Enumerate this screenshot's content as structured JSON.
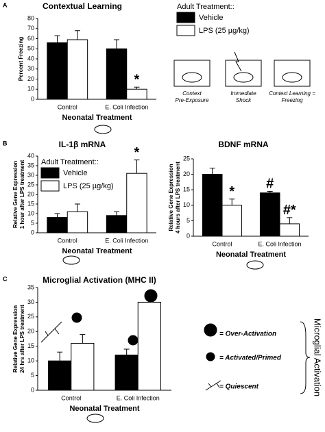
{
  "chart_data": [
    {
      "type": "bar",
      "label": "A",
      "title": "Contextual Learning",
      "ylabel": [
        "Percent Freezing"
      ],
      "xlabel": "Neonatal Treatment",
      "categories": [
        "Control",
        "E. Coli Infection"
      ],
      "series": [
        {
          "name": "Vehicle",
          "color": "#000000",
          "values": [
            56,
            50
          ],
          "errors": [
            7,
            9
          ],
          "annotations": [
            null,
            null
          ]
        },
        {
          "name": "LPS (25 µg/kg)",
          "color": "#ffffff",
          "values": [
            59,
            10
          ],
          "errors": [
            9,
            2
          ],
          "annotations": [
            null,
            "*"
          ]
        }
      ],
      "ylim": [
        0,
        80
      ],
      "yticks": [
        0,
        10,
        20,
        30,
        40,
        50,
        60,
        70,
        80
      ],
      "legend": true,
      "legend_title": "Adult Treatment::",
      "steps": [
        [
          "Context",
          "Pre-Exposure"
        ],
        [
          "Immediate",
          "Shock"
        ],
        [
          "Context Learning =",
          "Freezing"
        ]
      ]
    },
    {
      "type": "bar",
      "label": "B",
      "title": "IL-1β mRNA",
      "ylabel": [
        "Relative Gene Expression",
        "1 hour after LPS treatment"
      ],
      "xlabel": "Neonatal Treatment",
      "categories": [
        "Control",
        "E. Coli Infection"
      ],
      "series": [
        {
          "name": "Vehicle",
          "color": "#000000",
          "values": [
            8,
            9
          ],
          "errors": [
            2,
            2
          ],
          "annotations": [
            null,
            null
          ]
        },
        {
          "name": "LPS (25 µg/kg)",
          "color": "#ffffff",
          "values": [
            11,
            31
          ],
          "errors": [
            4,
            7
          ],
          "annotations": [
            null,
            "*"
          ]
        }
      ],
      "ylim": [
        0,
        40
      ],
      "yticks": [
        0,
        5,
        10,
        15,
        20,
        25,
        30,
        35,
        40
      ],
      "legend": true,
      "legend_title": "Adult Treatment::"
    },
    {
      "type": "bar",
      "title": "BDNF mRNA",
      "ylabel": [
        "Relative Gene Expression",
        "4 hours after LPS treatment"
      ],
      "xlabel": "Neonatal Treatment",
      "categories": [
        "Control",
        "E. Coli Infection"
      ],
      "series": [
        {
          "name": "Vehicle",
          "color": "#000000",
          "values": [
            20,
            14
          ],
          "errors": [
            2,
            0.5
          ],
          "annotations": [
            null,
            "#"
          ]
        },
        {
          "name": "LPS",
          "color": "#ffffff",
          "values": [
            10,
            4
          ],
          "errors": [
            2,
            2
          ],
          "annotations": [
            "*",
            "#*"
          ]
        }
      ],
      "ylim": [
        0,
        25
      ],
      "yticks": [
        0,
        5,
        10,
        15,
        20,
        25
      ],
      "legend": false
    },
    {
      "type": "bar",
      "label": "C",
      "title": "Microglial Activation (MHC II)",
      "ylabel": [
        "Relative Gene Expression",
        "24 hrs after LPS treatment"
      ],
      "xlabel": "Neonatal Treatment",
      "categories": [
        "Control",
        "E. Coli Infection"
      ],
      "series": [
        {
          "name": "Vehicle",
          "color": "#000000",
          "values": [
            10,
            12
          ],
          "errors": [
            3,
            2
          ],
          "annotations": [
            null,
            null
          ]
        },
        {
          "name": "LPS",
          "color": "#ffffff",
          "values": [
            16,
            30
          ],
          "errors": [
            3,
            3
          ],
          "annotations": [
            null,
            null
          ]
        }
      ],
      "ylim": [
        0,
        35
      ],
      "yticks": [
        0,
        5,
        10,
        15,
        20,
        25,
        30,
        35
      ],
      "legend": false,
      "icon_legend": [
        "= Over-Activation",
        "= Activated/Primed",
        "= Quiescent"
      ],
      "icon_legend_title": "Microglial Activation"
    }
  ]
}
